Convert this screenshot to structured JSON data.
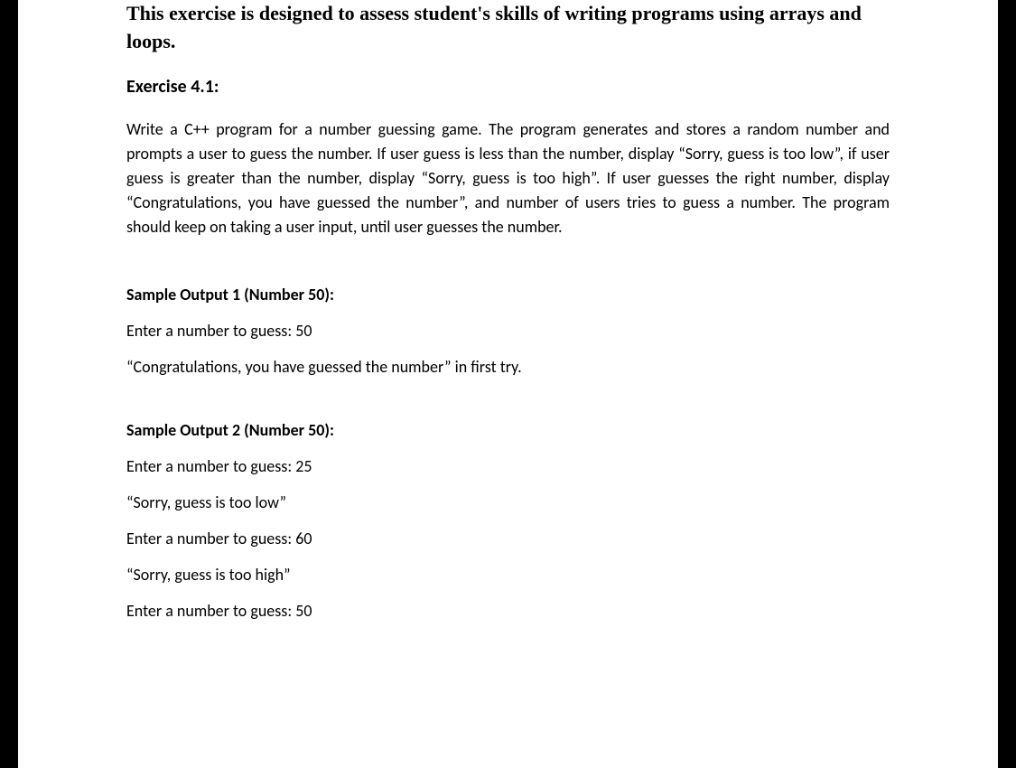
{
  "intro": "This exercise is designed to assess student's skills of writing programs using arrays and loops.",
  "exercise_heading": "Exercise 4.1:",
  "exercise_body": "Write a C++ program for a number guessing game. The program generates and stores a random number and prompts a user to guess the number. If user guess is less than the number, display “Sorry, guess is too low”, if user guess is greater than the number, display “Sorry, guess is too high”. If user guesses the right number, display “Congratulations, you have guessed the number”, and number of users tries to guess a number.  The program should keep on taking a user input, until user guesses the number.",
  "sample1": {
    "heading": "Sample Output 1 (Number 50):",
    "lines": [
      "Enter a number to guess: 50",
      "“Congratulations, you have guessed the number” in first try."
    ]
  },
  "sample2": {
    "heading": "Sample Output 2 (Number 50):",
    "lines": [
      "Enter a number to guess: 25",
      "“Sorry, guess is too low”",
      "Enter a number to guess: 60",
      "“Sorry, guess is too high”",
      "Enter a number to guess: 50"
    ]
  }
}
